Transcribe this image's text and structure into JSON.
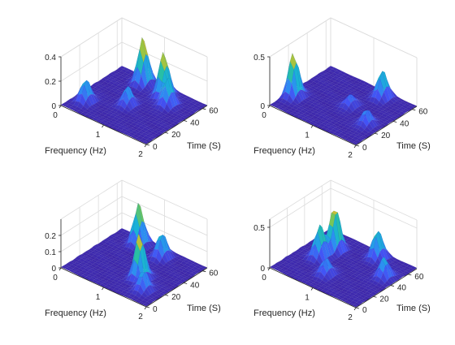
{
  "chart_data": [
    {
      "type": "surface",
      "xlabel": "Frequency (Hz)",
      "ylabel": "Time (S)",
      "zlabel": "",
      "xlim": [
        0,
        2
      ],
      "ylim": [
        0,
        65
      ],
      "zlim": [
        0,
        0.4
      ],
      "x_ticks": [
        "0",
        "1",
        "2"
      ],
      "y_ticks": [
        "0",
        "20",
        "40",
        "60"
      ],
      "z_ticks": [
        "0",
        "0.2",
        "0.4"
      ],
      "grid": true,
      "colormap": [
        "#3e26a8",
        "#4352f5",
        "#2d8ef2",
        "#1ab2d6",
        "#2ac1a0",
        "#8dc746",
        "#e9ba2f",
        "#f9fb14"
      ],
      "peaks": [
        {
          "x": 0.65,
          "y": 58,
          "z": 0.38
        },
        {
          "x": 1.2,
          "y": 55,
          "z": 0.36
        },
        {
          "x": 0.25,
          "y": 15,
          "z": 0.18
        },
        {
          "x": 1.45,
          "y": 48,
          "z": 0.22
        },
        {
          "x": 0.9,
          "y": 30,
          "z": 0.15
        }
      ]
    },
    {
      "type": "surface",
      "xlabel": "Frequency (Hz)",
      "ylabel": "Time (S)",
      "zlabel": "",
      "xlim": [
        0,
        2
      ],
      "ylim": [
        0,
        65
      ],
      "zlim": [
        0,
        0.5
      ],
      "x_ticks": [
        "0",
        "1",
        "2"
      ],
      "y_ticks": [
        "0",
        "20",
        "40",
        "60"
      ],
      "z_ticks": [
        "0",
        "0.5"
      ],
      "grid": true,
      "colormap": [
        "#3e26a8",
        "#4352f5",
        "#2d8ef2",
        "#1ab2d6",
        "#2ac1a0",
        "#8dc746",
        "#e9ba2f",
        "#f9fb14"
      ],
      "peaks": [
        {
          "x": 0.12,
          "y": 20,
          "z": 0.45
        },
        {
          "x": 1.35,
          "y": 58,
          "z": 0.28
        },
        {
          "x": 1.1,
          "y": 35,
          "z": 0.12
        },
        {
          "x": 1.7,
          "y": 25,
          "z": 0.15
        }
      ]
    },
    {
      "type": "surface",
      "xlabel": "Frequency (Hz)",
      "ylabel": "Time (S)",
      "zlabel": "",
      "xlim": [
        0,
        2
      ],
      "ylim": [
        0,
        65
      ],
      "zlim": [
        0,
        0.3
      ],
      "x_ticks": [
        "0",
        "1",
        "2"
      ],
      "y_ticks": [
        "0",
        "20",
        "40",
        "60"
      ],
      "z_ticks": [
        "0",
        "0.1",
        "0.2"
      ],
      "grid": true,
      "colormap": [
        "#3e26a8",
        "#4352f5",
        "#2d8ef2",
        "#1ab2d6",
        "#2ac1a0",
        "#8dc746",
        "#e9ba2f",
        "#f9fb14"
      ],
      "peaks": [
        {
          "x": 0.55,
          "y": 58,
          "z": 0.25
        },
        {
          "x": 1.3,
          "y": 25,
          "z": 0.28
        },
        {
          "x": 1.15,
          "y": 55,
          "z": 0.15
        },
        {
          "x": 1.6,
          "y": 15,
          "z": 0.12
        }
      ]
    },
    {
      "type": "surface",
      "xlabel": "Frequency (Hz)",
      "ylabel": "Time (S)",
      "zlabel": "",
      "xlim": [
        0,
        2
      ],
      "ylim": [
        0,
        70
      ],
      "zlim": [
        0,
        0.6
      ],
      "x_ticks": [
        "0",
        "1",
        "2"
      ],
      "y_ticks": [
        "0",
        "20",
        "40",
        "60"
      ],
      "z_ticks": [
        "0",
        "0.5"
      ],
      "grid": true,
      "colormap": [
        "#3e26a8",
        "#4352f5",
        "#2d8ef2",
        "#1ab2d6",
        "#2ac1a0",
        "#8dc746",
        "#e9ba2f",
        "#f9fb14"
      ],
      "peaks": [
        {
          "x": 0.5,
          "y": 50,
          "z": 0.55
        },
        {
          "x": 0.45,
          "y": 35,
          "z": 0.4
        },
        {
          "x": 1.25,
          "y": 62,
          "z": 0.35
        },
        {
          "x": 1.75,
          "y": 45,
          "z": 0.25
        },
        {
          "x": 0.9,
          "y": 20,
          "z": 0.2
        }
      ]
    }
  ]
}
